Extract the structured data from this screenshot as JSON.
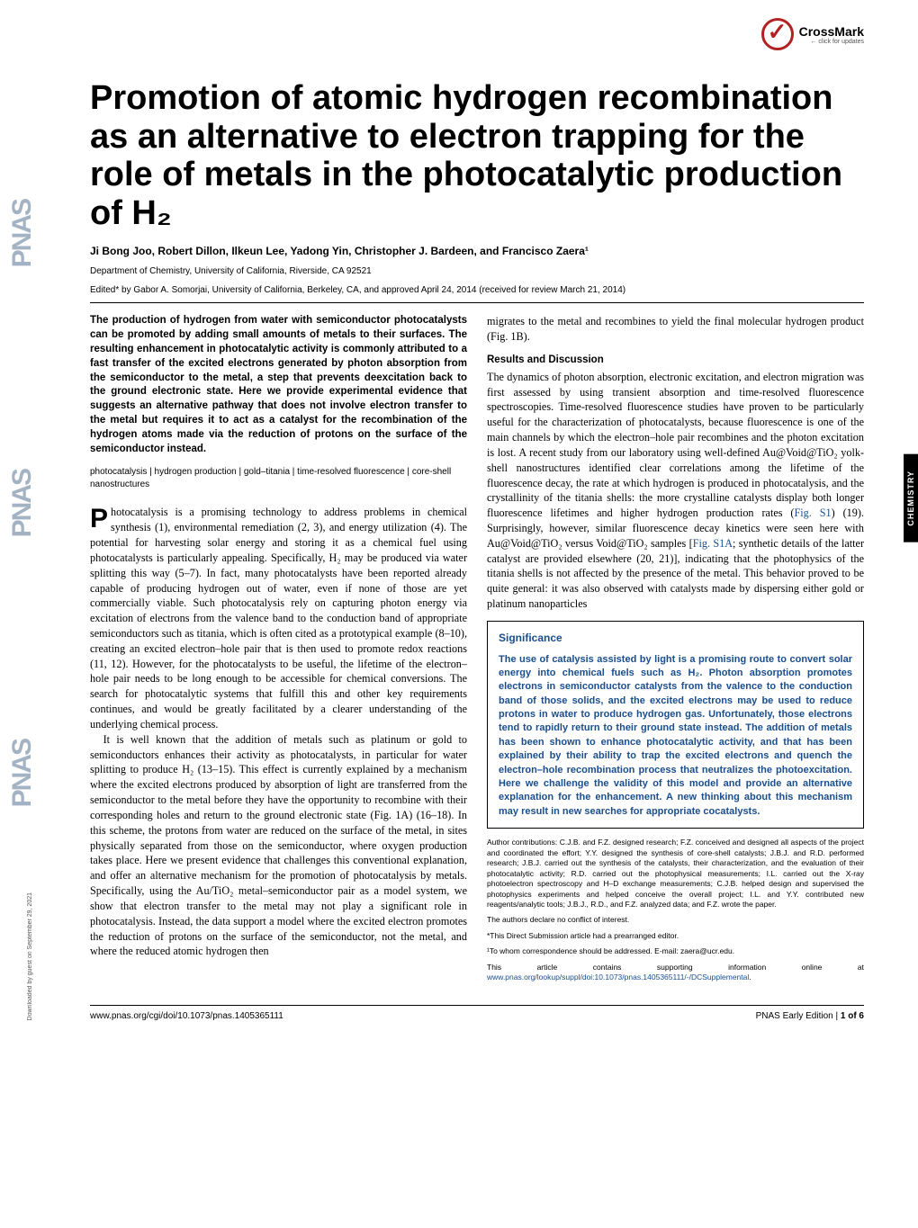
{
  "crossmark": {
    "label": "CrossMark",
    "sub": "← click for updates"
  },
  "side_logo": "PNAS",
  "download_note": "Downloaded by guest on September 29, 2021",
  "side_tab": "CHEMISTRY",
  "title": "Promotion of atomic hydrogen recombination as an alternative to electron trapping for the role of metals in the photocatalytic production of H₂",
  "authors": "Ji Bong Joo, Robert Dillon, Ilkeun Lee, Yadong Yin, Christopher J. Bardeen, and Francisco Zaera¹",
  "affiliation": "Department of Chemistry, University of California, Riverside, CA 92521",
  "edited": "Edited* by Gabor A. Somorjai, University of California, Berkeley, CA, and approved April 24, 2014 (received for review March 21, 2014)",
  "abstract": "The production of hydrogen from water with semiconductor photocatalysts can be promoted by adding small amounts of metals to their surfaces. The resulting enhancement in photocatalytic activity is commonly attributed to a fast transfer of the excited electrons generated by photon absorption from the semiconductor to the metal, a step that prevents deexcitation back to the ground electronic state. Here we provide experimental evidence that suggests an alternative pathway that does not involve electron transfer to the metal but requires it to act as a catalyst for the recombination of the hydrogen atoms made via the reduction of protons on the surface of the semiconductor instead.",
  "keywords": "photocatalysis | hydrogen production | gold–titania | time-resolved fluorescence | core-shell nanostructures",
  "body": {
    "p1": "Photocatalysis is a promising technology to address problems in chemical synthesis (1), environmental remediation (2, 3), and energy utilization (4). The potential for harvesting solar energy and storing it as a chemical fuel using photocatalysts is particularly appealing. Specifically, H₂ may be produced via water splitting this way (5–7). In fact, many photocatalysts have been reported already capable of producing hydrogen out of water, even if none of those are yet commercially viable. Such photocatalysis rely on capturing photon energy via excitation of electrons from the valence band to the conduction band of appropriate semiconductors such as titania, which is often cited as a prototypical example (8–10), creating an excited electron–hole pair that is then used to promote redox reactions (11, 12). However, for the photocatalysts to be useful, the lifetime of the electron–hole pair needs to be long enough to be accessible for chemical conversions. The search for photocatalytic systems that fulfill this and other key requirements continues, and would be greatly facilitated by a clearer understanding of the underlying chemical process.",
    "p2": "It is well known that the addition of metals such as platinum or gold to semiconductors enhances their activity as photocatalysts, in particular for water splitting to produce H₂ (13–15). This effect is currently explained by a mechanism where the excited electrons produced by absorption of light are transferred from the semiconductor to the metal before they have the opportunity to recombine with their corresponding holes and return to the ground electronic state (Fig. 1A) (16–18). In this scheme, the protons from water are reduced on the surface of the metal, in sites physically separated from those on the semiconductor, where oxygen production takes place. Here we present evidence that challenges this conventional explanation, and offer an alternative mechanism for the promotion of photocatalysis by metals. Specifically, using the Au/TiO₂ metal–semiconductor pair as a model system, we show that electron transfer to the metal may not play a significant role in photocatalysis. Instead, the data support a model where the excited electron promotes the reduction of protons on the surface of the semiconductor, not the metal, and where the reduced atomic hydrogen then"
  },
  "col2": {
    "cont": "migrates to the metal and recombines to yield the final molecular hydrogen product (Fig. 1B).",
    "results_head": "Results and Discussion",
    "results_p1a": "The dynamics of photon absorption, electronic excitation, and electron migration was first assessed by using transient absorption and time-resolved fluorescence spectroscopies. Time-resolved fluorescence studies have proven to be particularly useful for the characterization of photocatalysts, because fluorescence is one of the main channels by which the electron–hole pair recombines and the photon excitation is lost. A recent study from our laboratory using well-defined Au@Void@TiO₂ yolk-shell nanostructures identified clear correlations among the lifetime of the fluorescence decay, the rate at which hydrogen is produced in photocatalysis, and the crystallinity of the titania shells: the more crystalline catalysts display both longer fluorescence lifetimes and higher hydrogen production rates (",
    "fig_s1": "Fig. S1",
    "results_p1b": ") (19). Surprisingly, however, similar fluorescence decay kinetics were seen here with Au@Void@TiO₂ versus Void@TiO₂ samples [",
    "fig_s1a": "Fig. S1A",
    "results_p1c": "; synthetic details of the latter catalyst are provided elsewhere (20, 21)], indicating that the photophysics of the titania shells is not affected by the presence of the metal. This behavior proved to be quite general: it was also observed with catalysts made by dispersing either gold or platinum nanoparticles"
  },
  "significance": {
    "head": "Significance",
    "text": "The use of catalysis assisted by light is a promising route to convert solar energy into chemical fuels such as H₂. Photon absorption promotes electrons in semiconductor catalysts from the valence to the conduction band of those solids, and the excited electrons may be used to reduce protons in water to produce hydrogen gas. Unfortunately, those electrons tend to rapidly return to their ground state instead. The addition of metals has been shown to enhance photocatalytic activity, and that has been explained by their ability to trap the excited electrons and quench the electron–hole recombination process that neutralizes the photoexcitation. Here we challenge the validity of this model and provide an alternative explanation for the enhancement. A new thinking about this mechanism may result in new searches for appropriate cocatalysts."
  },
  "contrib": {
    "c1": "Author contributions: C.J.B. and F.Z. designed research; F.Z. conceived and designed all aspects of the project and coordinated the effort; Y.Y. designed the synthesis of core-shell catalysts; J.B.J. and R.D. performed research; J.B.J. carried out the synthesis of the catalysts, their characterization, and the evaluation of their photocatalytic activity; R.D. carried out the photophysical measurements; I.L. carried out the X-ray photoelectron spectroscopy and H–D exchange measurements; C.J.B. helped design and supervised the photophysics experiments and helped conceive the overall project; I.L. and Y.Y. contributed new reagents/analytic tools; J.B.J., R.D., and F.Z. analyzed data; and F.Z. wrote the paper.",
    "c2": "The authors declare no conflict of interest.",
    "c3": "*This Direct Submission article had a prearranged editor.",
    "c4": "¹To whom correspondence should be addressed. E-mail: zaera@ucr.edu.",
    "c5a": "This article contains supporting information online at ",
    "c5_link": "www.pnas.org/lookup/suppl/doi:10.1073/pnas.1405365111/-/DCSupplemental",
    "c5b": "."
  },
  "footer": {
    "left": "www.pnas.org/cgi/doi/10.1073/pnas.1405365111",
    "right_a": "PNAS Early Edition",
    "right_b": " | ",
    "right_c": "1 of 6"
  }
}
